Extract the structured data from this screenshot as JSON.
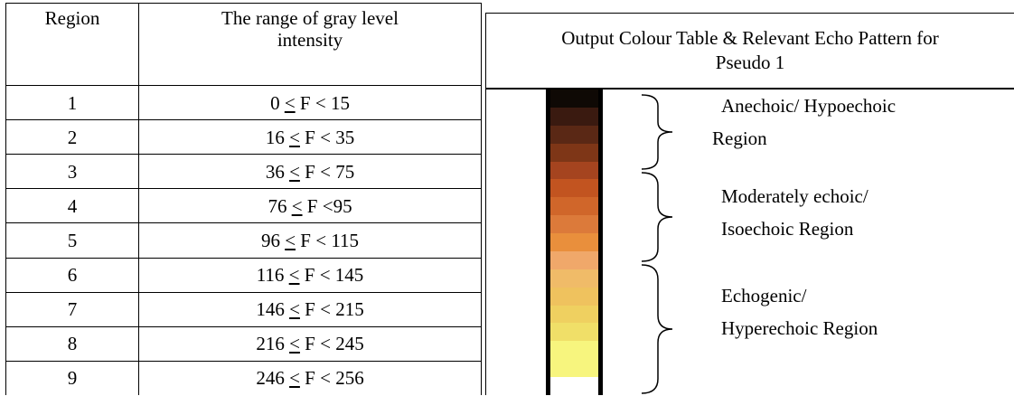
{
  "table": {
    "headers": {
      "region": "Region",
      "range": "The range of gray level intensity"
    },
    "rows": [
      {
        "region": "1",
        "low": "0",
        "high": "15"
      },
      {
        "region": "2",
        "low": "16",
        "high": "35"
      },
      {
        "region": "3",
        "low": "36",
        "high": "75"
      },
      {
        "region": "4",
        "low": "76",
        "high": "95"
      },
      {
        "region": "5",
        "low": "96",
        "high": "115"
      },
      {
        "region": "6",
        "low": "116",
        "high": "145"
      },
      {
        "region": "7",
        "low": "146",
        "high": "215"
      },
      {
        "region": "8",
        "low": "216",
        "high": "245"
      },
      {
        "region": "9",
        "low": "246",
        "high": "256"
      }
    ]
  },
  "panel": {
    "title": "Output Colour Table & Relevant Echo Pattern for Pseudo 1",
    "swatch_colors": [
      "#0f0905",
      "#3a1a10",
      "#5a2815",
      "#7e3617",
      "#a5441f",
      "#c25420",
      "#d0662a",
      "#dc7a3a",
      "#e98f3c",
      "#f0a86a",
      "#f0bb68",
      "#efc25e",
      "#efd060",
      "#f0df68",
      "#f7f57e",
      "#f7f57e",
      "#ffffff"
    ],
    "regions": [
      {
        "line1": "Anechoic/ Hypoechoic",
        "line2": "Region"
      },
      {
        "line1": "Moderately echoic/",
        "line2": "Isoechoic Region"
      },
      {
        "line1": "Echogenic/",
        "line2": "Hyperechoic Region"
      }
    ]
  }
}
